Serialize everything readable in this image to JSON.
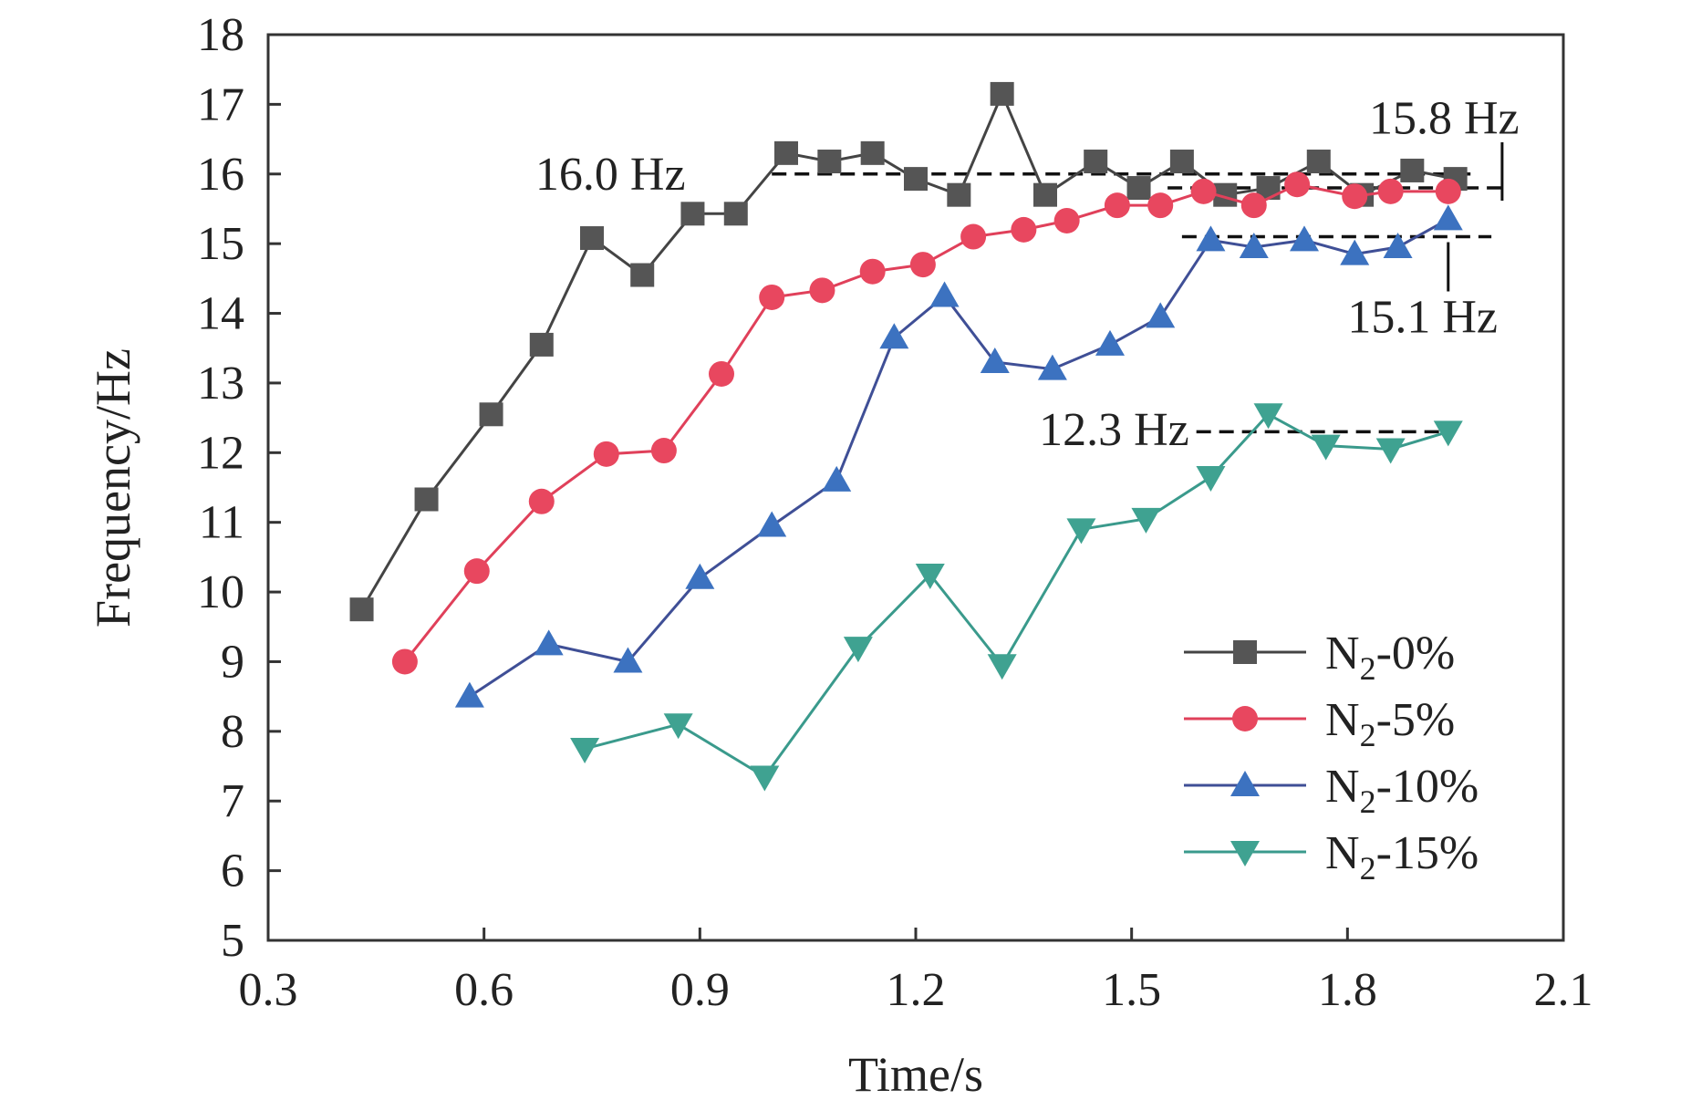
{
  "chart_data": {
    "type": "line",
    "title": "",
    "xlabel": "Time/s",
    "ylabel": "Frequency/Hz",
    "xlim": [
      0.3,
      2.1
    ],
    "ylim": [
      5,
      18
    ],
    "xticks": [
      "0.3",
      "0.6",
      "0.9",
      "1.2",
      "1.5",
      "1.8",
      "2.1"
    ],
    "yticks": [
      "5",
      "6",
      "7",
      "8",
      "9",
      "10",
      "11",
      "12",
      "13",
      "14",
      "15",
      "16",
      "17",
      "18"
    ],
    "grid": false,
    "legend_position": "bottom-right",
    "series": [
      {
        "name": "N2-0%",
        "legend_base": "N",
        "legend_sub": "2",
        "legend_rest": "-0%",
        "marker": "square",
        "line_color": "#444444",
        "marker_color": "#555555",
        "points": [
          [
            0.43,
            9.75
          ],
          [
            0.52,
            11.33
          ],
          [
            0.61,
            12.55
          ],
          [
            0.68,
            13.55
          ],
          [
            0.75,
            15.08
          ],
          [
            0.82,
            14.55
          ],
          [
            0.89,
            15.43
          ],
          [
            0.95,
            15.43
          ],
          [
            1.02,
            16.3
          ],
          [
            1.08,
            16.18
          ],
          [
            1.14,
            16.3
          ],
          [
            1.2,
            15.93
          ],
          [
            1.26,
            15.7
          ],
          [
            1.32,
            17.15
          ],
          [
            1.38,
            15.7
          ],
          [
            1.45,
            16.18
          ],
          [
            1.51,
            15.8
          ],
          [
            1.57,
            16.18
          ],
          [
            1.63,
            15.7
          ],
          [
            1.69,
            15.8
          ],
          [
            1.76,
            16.18
          ],
          [
            1.82,
            15.7
          ],
          [
            1.89,
            16.05
          ],
          [
            1.95,
            15.93
          ]
        ]
      },
      {
        "name": "N2-5%",
        "legend_base": "N",
        "legend_sub": "2",
        "legend_rest": "-5%",
        "marker": "circle",
        "line_color": "#e0405a",
        "marker_color": "#e8475f",
        "points": [
          [
            0.49,
            9.0
          ],
          [
            0.59,
            10.3
          ],
          [
            0.68,
            11.3
          ],
          [
            0.77,
            11.98
          ],
          [
            0.85,
            12.03
          ],
          [
            0.93,
            13.13
          ],
          [
            1.0,
            14.23
          ],
          [
            1.07,
            14.33
          ],
          [
            1.14,
            14.6
          ],
          [
            1.21,
            14.7
          ],
          [
            1.28,
            15.1
          ],
          [
            1.35,
            15.2
          ],
          [
            1.41,
            15.33
          ],
          [
            1.48,
            15.55
          ],
          [
            1.54,
            15.55
          ],
          [
            1.6,
            15.75
          ],
          [
            1.67,
            15.55
          ],
          [
            1.73,
            15.85
          ],
          [
            1.81,
            15.68
          ],
          [
            1.86,
            15.75
          ],
          [
            1.94,
            15.75
          ]
        ]
      },
      {
        "name": "N2-10%",
        "legend_base": "N",
        "legend_sub": "2",
        "legend_rest": "-10%",
        "marker": "triangle-up",
        "line_color": "#3f4f96",
        "marker_color": "#3c72c0",
        "points": [
          [
            0.58,
            8.5
          ],
          [
            0.69,
            9.25
          ],
          [
            0.8,
            9.0
          ],
          [
            0.9,
            10.2
          ],
          [
            1.0,
            10.95
          ],
          [
            1.09,
            11.6
          ],
          [
            1.17,
            13.65
          ],
          [
            1.24,
            14.25
          ],
          [
            1.31,
            13.3
          ],
          [
            1.39,
            13.2
          ],
          [
            1.47,
            13.55
          ],
          [
            1.54,
            13.95
          ],
          [
            1.61,
            15.05
          ],
          [
            1.67,
            14.95
          ],
          [
            1.74,
            15.05
          ],
          [
            1.81,
            14.85
          ],
          [
            1.87,
            14.95
          ],
          [
            1.94,
            15.35
          ]
        ]
      },
      {
        "name": "N2-15%",
        "legend_base": "N",
        "legend_sub": "2",
        "legend_rest": "-15%",
        "marker": "triangle-down",
        "line_color": "#3a9a8c",
        "marker_color": "#3fa291",
        "points": [
          [
            0.74,
            7.75
          ],
          [
            0.87,
            8.1
          ],
          [
            0.99,
            7.35
          ],
          [
            1.12,
            9.2
          ],
          [
            1.22,
            10.25
          ],
          [
            1.32,
            8.95
          ],
          [
            1.43,
            10.9
          ],
          [
            1.52,
            11.05
          ],
          [
            1.61,
            11.65
          ],
          [
            1.69,
            12.55
          ],
          [
            1.77,
            12.1
          ],
          [
            1.86,
            12.05
          ],
          [
            1.94,
            12.3
          ]
        ]
      }
    ],
    "annotations": [
      {
        "text": "16.0 Hz",
        "value": 16.0,
        "x_from": 1.0,
        "x_to": 1.98,
        "anchor_x": 0.88,
        "anchor_y": 16.0,
        "align": "end",
        "leader": "none"
      },
      {
        "text": "15.8 Hz",
        "value": 15.8,
        "x_from": 1.55,
        "x_to": 2.02,
        "anchor_x": 1.83,
        "anchor_y": 16.8,
        "align": "start",
        "leader": "up"
      },
      {
        "text": "15.1 Hz",
        "value": 15.1,
        "x_from": 1.57,
        "x_to": 2.0,
        "anchor_x": 1.8,
        "anchor_y": 13.95,
        "align": "start",
        "leader": "down"
      },
      {
        "text": "12.3 Hz",
        "value": 12.3,
        "x_from": 1.59,
        "x_to": 1.94,
        "anchor_x": 1.58,
        "anchor_y": 12.33,
        "align": "end",
        "leader": "none"
      }
    ]
  }
}
